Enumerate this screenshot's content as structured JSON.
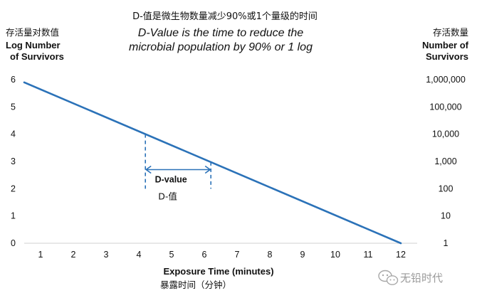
{
  "chart_data": {
    "type": "line",
    "title_cn": "D-值是微生物数量减少90%或1个量级的时间",
    "title_en_line1": "D-Value is the time to reduce the",
    "title_en_line2": "microbial population by 90% or 1 log",
    "left_axis": {
      "label_cn": "存活量对数值",
      "label_en_line1": "Log Number",
      "label_en_line2": "of Survivors",
      "ticks": [
        "0",
        "1",
        "2",
        "3",
        "4",
        "5",
        "6"
      ],
      "range": [
        0,
        6
      ]
    },
    "right_axis": {
      "label_cn": "存活数量",
      "label_en_line1": "Number of",
      "label_en_line2": "Survivors",
      "ticks": [
        "1",
        "10",
        "100",
        "1,000",
        "10,000",
        "100,000",
        "1,000,000"
      ],
      "scale": "log"
    },
    "x_axis": {
      "label_en": "Exposure Time (minutes)",
      "label_cn": "暴露时间（分钟）",
      "ticks": [
        "1",
        "2",
        "3",
        "4",
        "5",
        "6",
        "7",
        "8",
        "9",
        "10",
        "11",
        "12"
      ],
      "range": [
        0.5,
        12.5
      ]
    },
    "series": [
      {
        "x": [
          0.5,
          12
        ],
        "y": [
          5.9,
          0
        ],
        "color": "#2b72b8"
      }
    ],
    "annotation": {
      "label_en": "D-value",
      "label_cn": "D-值",
      "x_start": 4.2,
      "x_end": 6.2,
      "arrow_y": 2.7,
      "color": "#2b72b8"
    },
    "grid": false
  },
  "watermark": {
    "text": "无铅时代",
    "icon": "wechat-icon"
  }
}
